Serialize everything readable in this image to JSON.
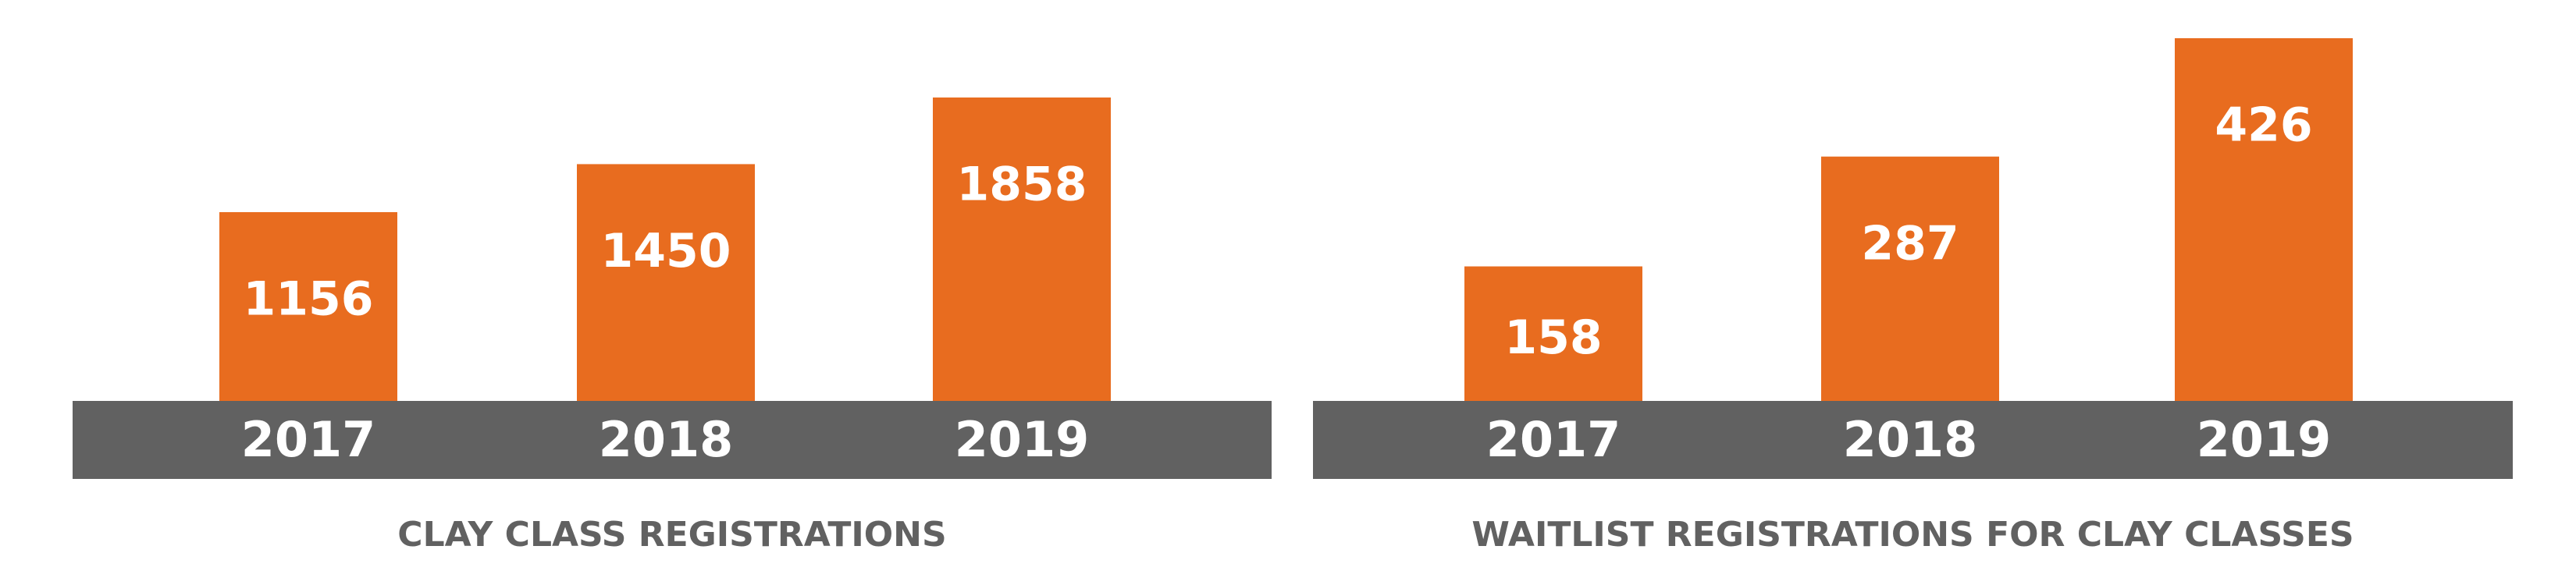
{
  "chart_data": [
    {
      "type": "bar",
      "title": "CLAY CLASS REGISTRATIONS",
      "categories": [
        "2017",
        "2018",
        "2019"
      ],
      "values": [
        1156,
        1450,
        1858
      ],
      "color": "#e86c1f",
      "band_color": "#616161"
    },
    {
      "type": "bar",
      "title": "WAITLIST REGISTRATIONS FOR CLAY CLASSES",
      "categories": [
        "2017",
        "2018",
        "2019"
      ],
      "values": [
        158,
        287,
        426
      ],
      "color": "#e86c1f",
      "band_color": "#616161"
    }
  ]
}
